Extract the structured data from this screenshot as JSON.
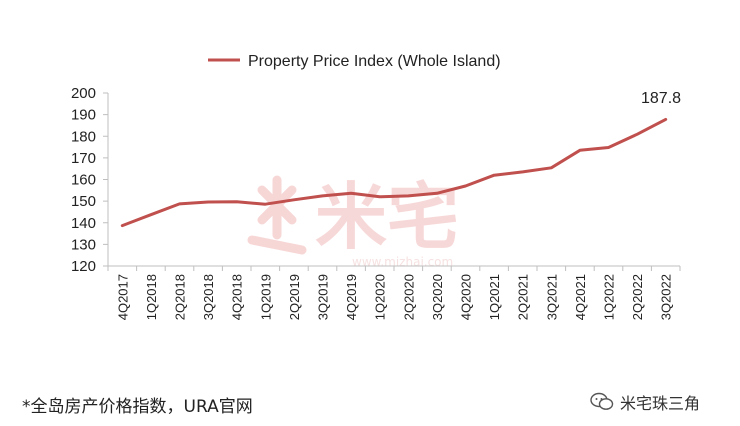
{
  "chart_data": {
    "type": "line",
    "categories": [
      "4Q2017",
      "1Q2018",
      "2Q2018",
      "3Q2018",
      "4Q2018",
      "1Q2019",
      "2Q2019",
      "3Q2019",
      "4Q2019",
      "1Q2020",
      "2Q2020",
      "3Q2020",
      "4Q2020",
      "1Q2021",
      "2Q2021",
      "3Q2021",
      "4Q2021",
      "1Q2022",
      "2Q2022",
      "3Q2022"
    ],
    "series": [
      {
        "name": "Property Price Index (Whole Island)",
        "values": [
          138.7,
          143.7,
          148.7,
          149.6,
          149.7,
          148.6,
          150.6,
          152.4,
          153.6,
          152.0,
          152.4,
          153.6,
          157.0,
          162.0,
          163.5,
          165.4,
          173.5,
          174.8,
          180.9,
          187.8
        ],
        "color": "#c0504d"
      }
    ],
    "ylim": [
      120,
      200
    ],
    "yticks": [
      120,
      130,
      140,
      150,
      160,
      170,
      180,
      190,
      200
    ],
    "annotation": "187.8",
    "legend": "top-center",
    "grid": false
  },
  "watermark": {
    "text": "米宅",
    "url": "www.mizhai.com",
    "color": "#f2c2c2"
  },
  "footnote": "*全岛房产价格指数，URA官网",
  "brand": {
    "label": "米宅珠三角",
    "icon": "wechat-icon"
  }
}
